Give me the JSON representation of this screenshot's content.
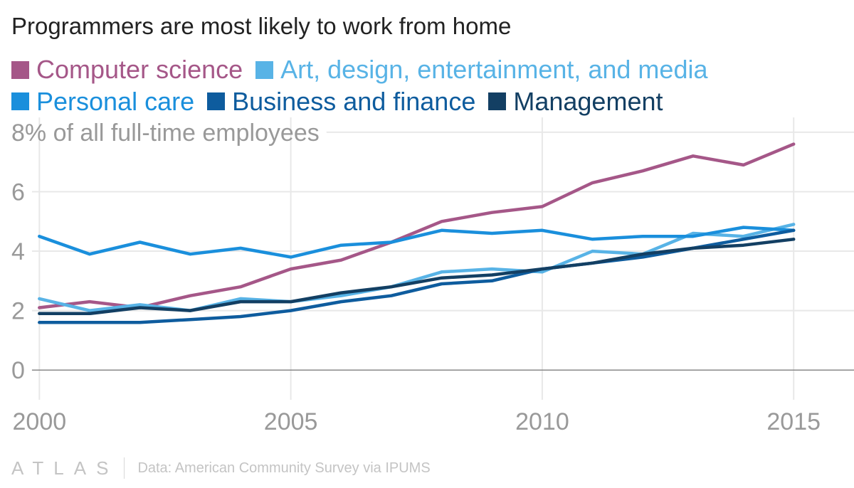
{
  "title": "Programmers are most likely to work from home",
  "footer": {
    "brand": "ATLAS",
    "source": "Data: American Community Survey via IPUMS"
  },
  "chart_data": {
    "type": "line",
    "title": "Programmers are most likely to work from home",
    "ylabel": "% of all full-time employees",
    "ylim": [
      -1,
      8.5
    ],
    "xlim": [
      1999.5,
      2016.2
    ],
    "x_ticks": [
      2000,
      2005,
      2010,
      2015
    ],
    "y_ticks": [
      0,
      2,
      4,
      6,
      8
    ],
    "top_tick_label": "8% of all full-time employees",
    "grid": true,
    "legend_position": "top",
    "x": [
      2000,
      2001,
      2002,
      2003,
      2004,
      2005,
      2006,
      2007,
      2008,
      2009,
      2010,
      2011,
      2012,
      2013,
      2014,
      2015
    ],
    "series": [
      {
        "name": "Computer science",
        "color": "#a55788",
        "values": [
          2.1,
          2.3,
          2.1,
          2.5,
          2.8,
          3.4,
          3.7,
          4.3,
          5.0,
          5.3,
          5.5,
          6.3,
          6.7,
          7.2,
          6.9,
          7.6
        ]
      },
      {
        "name": "Art, design, entertainment, and media",
        "color": "#58b3e6",
        "values": [
          2.4,
          2.0,
          2.2,
          2.0,
          2.4,
          2.3,
          2.5,
          2.8,
          3.3,
          3.4,
          3.3,
          4.0,
          3.9,
          4.6,
          4.5,
          4.9
        ]
      },
      {
        "name": "Personal care",
        "color": "#1a8fdc",
        "values": [
          4.5,
          3.9,
          4.3,
          3.9,
          4.1,
          3.8,
          4.2,
          4.3,
          4.7,
          4.6,
          4.7,
          4.4,
          4.5,
          4.5,
          4.8,
          4.7
        ]
      },
      {
        "name": "Business and finance",
        "color": "#0e5c9e",
        "values": [
          1.6,
          1.6,
          1.6,
          1.7,
          1.8,
          2.0,
          2.3,
          2.5,
          2.9,
          3.0,
          3.4,
          3.6,
          3.8,
          4.1,
          4.4,
          4.7
        ]
      },
      {
        "name": "Management",
        "color": "#133f63",
        "values": [
          1.9,
          1.9,
          2.1,
          2.0,
          2.3,
          2.3,
          2.6,
          2.8,
          3.1,
          3.2,
          3.4,
          3.6,
          3.9,
          4.1,
          4.2,
          4.4
        ]
      }
    ]
  }
}
